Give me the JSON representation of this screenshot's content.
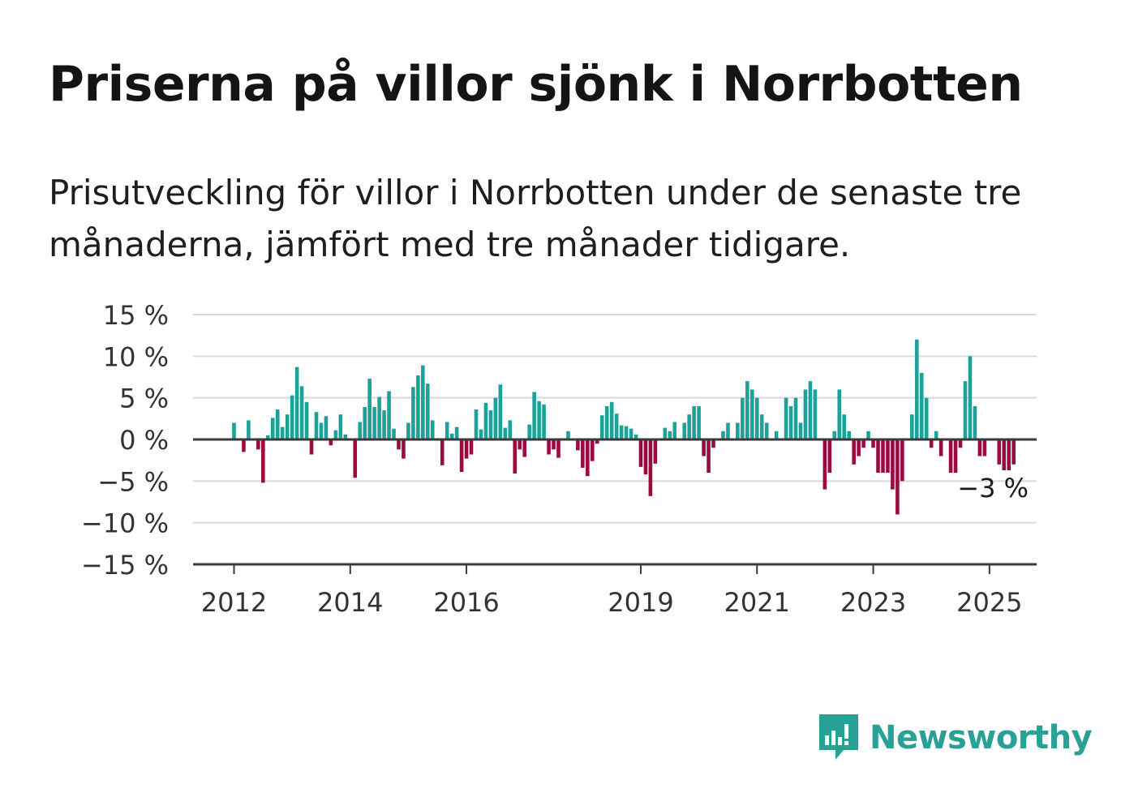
{
  "title": "Priserna på villor sjönk i Norrbotten",
  "subtitle": "Prisutveckling för villor i Norrbotten under de senaste tre månaderna, jämfört med tre månader tidigare.",
  "brand": {
    "name": "Newsworthy",
    "logo_icon": "newsworthy-bar-chart-speech-bubble-icon"
  },
  "colors": {
    "positive": "#1ba39a",
    "negative": "#9b0a41",
    "grid": "#d9d9d9",
    "axis": "#3a3a3a",
    "brand": "#2aa197"
  },
  "chart_data": {
    "type": "bar",
    "x_tick_labels": [
      "2012",
      "2014",
      "2016",
      "2019",
      "2021",
      "2023",
      "2025"
    ],
    "y_tick_labels": [
      "15 %",
      "10 %",
      "5 %",
      "0 %",
      "−5 %",
      "−10 %",
      "−15 %"
    ],
    "ylim": [
      -15,
      15
    ],
    "grid": true,
    "annotation": "−3 %",
    "x_start": "2012-01",
    "frequency": "monthly",
    "values": [
      2,
      0,
      -1.5,
      2.3,
      0,
      -1.2,
      -5.2,
      0.5,
      2.6,
      3.6,
      1.5,
      3,
      5.3,
      8.7,
      6.4,
      4.5,
      -1.8,
      3.3,
      2,
      2.8,
      -0.7,
      1.1,
      3,
      0.6,
      0,
      -4.6,
      2.1,
      3.9,
      7.3,
      3.9,
      5.1,
      3.5,
      5.8,
      1.3,
      -1.2,
      -2.3,
      2,
      6.3,
      7.7,
      8.9,
      6.7,
      2.3,
      0,
      -3.1,
      2.1,
      0.7,
      1.5,
      -3.9,
      -2.3,
      -1.8,
      3.6,
      1.2,
      4.4,
      3.5,
      5,
      6.6,
      1.4,
      2.3,
      -4.1,
      -1.2,
      -2.1,
      1.8,
      5.7,
      4.6,
      4.2,
      -1.8,
      -1.2,
      -2.2,
      0,
      1,
      0,
      -1.3,
      -3.4,
      -4.4,
      -2.6,
      -0.5,
      2.9,
      4,
      4.5,
      3.1,
      1.7,
      1.6,
      1.3,
      0.6,
      -3.3,
      -4.2,
      -6.8,
      -2.9,
      0,
      1.4,
      1,
      2.1,
      0,
      2,
      3,
      4,
      4,
      -2,
      -4,
      -1,
      0,
      1,
      2,
      0,
      2,
      5,
      7,
      6,
      5,
      3,
      2,
      0,
      1,
      0,
      5,
      4,
      5,
      2,
      6,
      7,
      6,
      0,
      -6,
      -4,
      1,
      6,
      3,
      1,
      -3,
      -2,
      -1,
      1,
      -1,
      -4,
      -4,
      -4,
      -6,
      -9,
      -5,
      0,
      3,
      12,
      8,
      5,
      -1,
      1,
      -2,
      0,
      -4,
      -4,
      -1,
      7,
      10,
      4,
      -2,
      -2,
      0,
      0,
      -3,
      -3.7,
      -3.7,
      -3
    ]
  }
}
